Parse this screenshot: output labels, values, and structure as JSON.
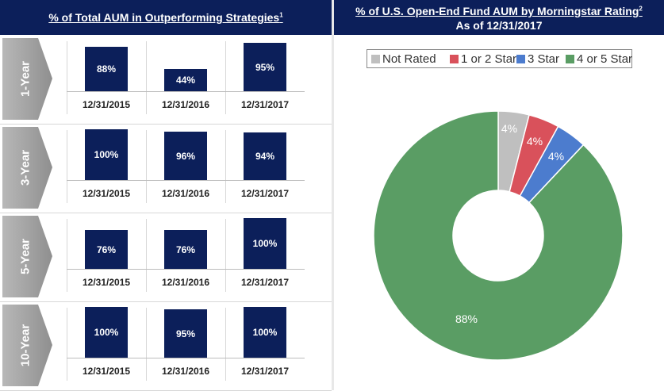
{
  "left_panel": {
    "title": "% of Total AUM in Outperforming Strategies",
    "footnote": "1"
  },
  "right_panel": {
    "title": "% of U.S. Open-End Fund AUM by Morningstar Rating",
    "footnote": "2",
    "subtitle": "As of 12/31/2017"
  },
  "chart_data": [
    {
      "type": "bar",
      "title": "1-Year",
      "categories": [
        "12/31/2015",
        "12/31/2016",
        "12/31/2017"
      ],
      "values": [
        88,
        44,
        95
      ],
      "labels": [
        "88%",
        "44%",
        "95%"
      ],
      "ylim": [
        0,
        100
      ]
    },
    {
      "type": "bar",
      "title": "3-Year",
      "categories": [
        "12/31/2015",
        "12/31/2016",
        "12/31/2017"
      ],
      "values": [
        100,
        96,
        94
      ],
      "labels": [
        "100%",
        "96%",
        "94%"
      ],
      "ylim": [
        0,
        100
      ]
    },
    {
      "type": "bar",
      "title": "5-Year",
      "categories": [
        "12/31/2015",
        "12/31/2016",
        "12/31/2017"
      ],
      "values": [
        76,
        76,
        100
      ],
      "labels": [
        "76%",
        "76%",
        "100%"
      ],
      "ylim": [
        0,
        100
      ]
    },
    {
      "type": "bar",
      "title": "10-Year",
      "categories": [
        "12/31/2015",
        "12/31/2016",
        "12/31/2017"
      ],
      "values": [
        100,
        95,
        100
      ],
      "labels": [
        "100%",
        "95%",
        "100%"
      ],
      "ylim": [
        0,
        100
      ]
    },
    {
      "type": "pie",
      "title": "% of U.S. Open-End Fund AUM by Morningstar Rating",
      "labels": [
        "Not Rated",
        "1 or 2 Star",
        "3 Star",
        "4 or 5 Star"
      ],
      "values": [
        4,
        4,
        4,
        88
      ],
      "value_labels": [
        "4%",
        "4%",
        "4%",
        "88%"
      ],
      "colors": [
        "#bfbfbf",
        "#d9515b",
        "#4c7cce",
        "#5a9d64"
      ],
      "legend": "top"
    }
  ],
  "colors": {
    "header_bg": "#0c1f5a",
    "bar": "#0c1f5a",
    "arrow": "#a6a6a6"
  }
}
